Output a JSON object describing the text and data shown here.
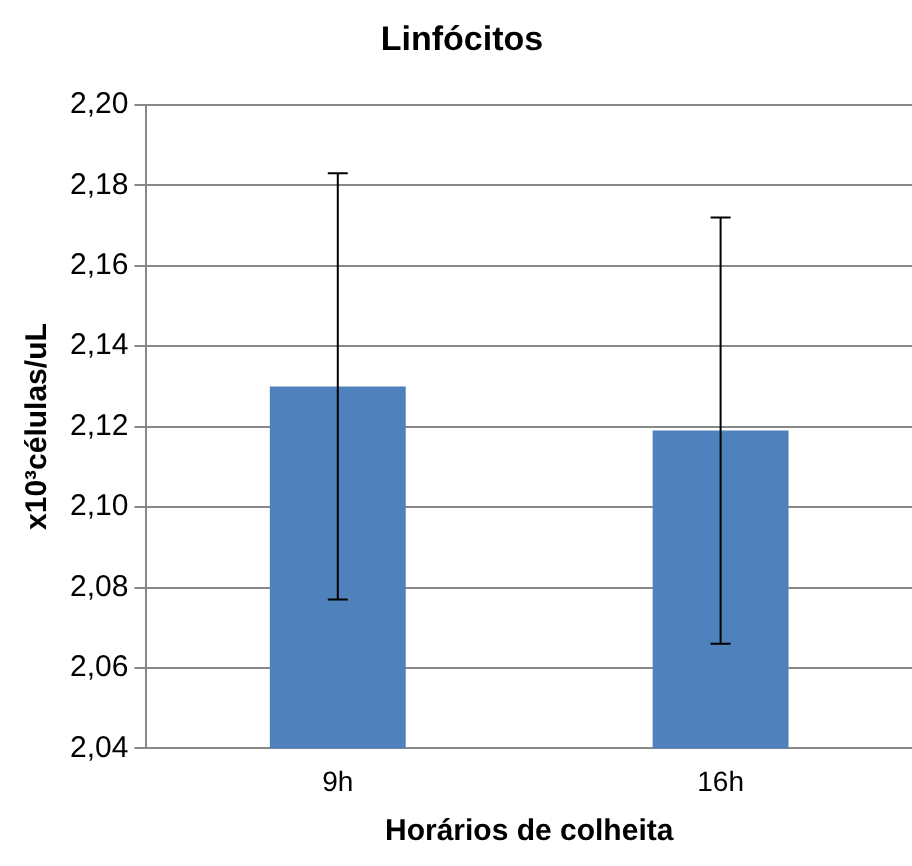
{
  "chart_data": {
    "type": "bar",
    "title": "Linfócitos",
    "xlabel": "Horários de colheita",
    "ylabel": "x10³células/uL",
    "categories": [
      "9h",
      "16h"
    ],
    "values": [
      2.13,
      2.119
    ],
    "errors": [
      0.053,
      0.053
    ],
    "color": "#4f81bd",
    "ylim": [
      2.04,
      2.2
    ],
    "yticks": [
      {
        "value": 2.04,
        "label": "2,04"
      },
      {
        "value": 2.06,
        "label": "2,06"
      },
      {
        "value": 2.08,
        "label": "2,08"
      },
      {
        "value": 2.1,
        "label": "2,10"
      },
      {
        "value": 2.12,
        "label": "2,12"
      },
      {
        "value": 2.14,
        "label": "2,14"
      },
      {
        "value": 2.16,
        "label": "2,16"
      },
      {
        "value": 2.18,
        "label": "2,18"
      },
      {
        "value": 2.2,
        "label": "2,20"
      }
    ],
    "grid": "y",
    "legend": false
  }
}
